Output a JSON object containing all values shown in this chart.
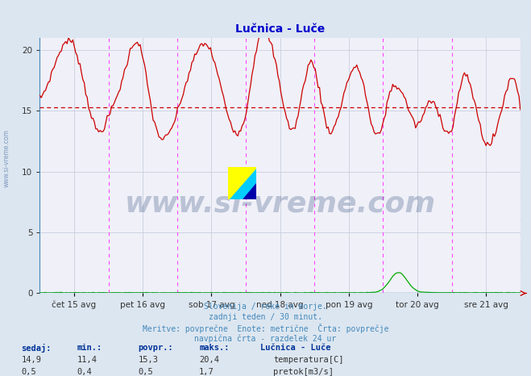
{
  "title": "Lučnica - Luče",
  "title_color": "#0000cc",
  "bg_color": "#dce6f0",
  "plot_bg_color": "#f0f0f8",
  "grid_color": "#c0c8d8",
  "xticklabels": [
    "čet 15 avg",
    "pet 16 avg",
    "sob 17 avg",
    "ned 18 avg",
    "pon 19 avg",
    "tor 20 avg",
    "sre 21 avg"
  ],
  "yticks": [
    0,
    5,
    10,
    15,
    20
  ],
  "ylim": [
    0,
    21
  ],
  "temp_color": "#cc0000",
  "flow_color": "#00aa00",
  "avg_line_color": "#cc0000",
  "avg_line_value": 15.3,
  "vline_color": "#ff44ff",
  "n_points": 336,
  "watermark_text": "www.si-vreme.com",
  "watermark_color": "#1a3a6e",
  "watermark_alpha": 0.25,
  "footer_lines": [
    "Slovenija / reke in morje.",
    "zadnji teden / 30 minut.",
    "Meritve: povprečne  Enote: metrične  Črta: povprečje",
    "navpična črta - razdelek 24 ur"
  ],
  "footer_color": "#4488bb",
  "label_color": "#003399",
  "table_header": [
    "sedaj:",
    "min.:",
    "povpr.:",
    "maks.:",
    "Lučnica - Luče"
  ],
  "table_rows": [
    [
      "14,9",
      "11,4",
      "15,3",
      "20,4"
    ],
    [
      "0,5",
      "0,4",
      "0,5",
      "1,7"
    ]
  ],
  "legend_items": [
    "temperatura[C]",
    "pretok[m3/s]"
  ],
  "legend_colors": [
    "#cc0000",
    "#00aa00"
  ],
  "spine_color": "#4488bb",
  "tick_color": "#333333"
}
